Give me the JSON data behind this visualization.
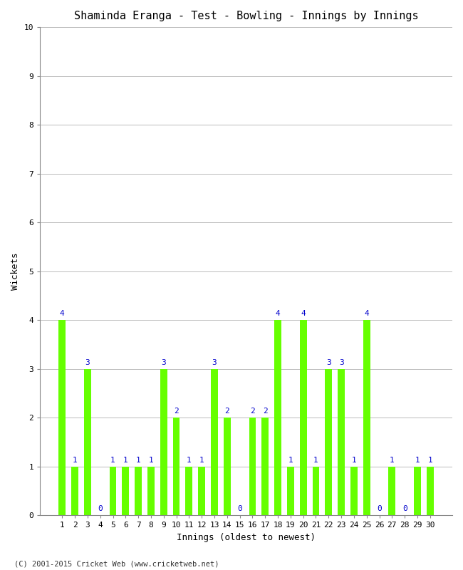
{
  "title": "Shaminda Eranga - Test - Bowling - Innings by Innings",
  "xlabel": "Innings (oldest to newest)",
  "ylabel": "Wickets",
  "bar_color": "#66FF00",
  "label_color": "#0000CC",
  "background_color": "#ffffff",
  "grid_color": "#bbbbbb",
  "footer": "(C) 2001-2015 Cricket Web (www.cricketweb.net)",
  "ylim": [
    0,
    10
  ],
  "yticks": [
    0,
    1,
    2,
    3,
    4,
    5,
    6,
    7,
    8,
    9,
    10
  ],
  "innings": [
    1,
    2,
    3,
    4,
    5,
    6,
    7,
    8,
    9,
    10,
    11,
    12,
    13,
    14,
    15,
    16,
    17,
    18,
    19,
    20,
    21,
    22,
    23,
    24,
    25,
    26,
    27,
    28,
    29,
    30
  ],
  "wickets": [
    4,
    1,
    3,
    0,
    1,
    1,
    1,
    1,
    3,
    2,
    1,
    1,
    3,
    2,
    0,
    2,
    2,
    4,
    1,
    4,
    1,
    3,
    3,
    1,
    4,
    0,
    1,
    0,
    1,
    1
  ],
  "bar_width": 0.55,
  "label_fontsize": 8,
  "tick_fontsize": 8,
  "title_fontsize": 11,
  "axis_label_fontsize": 9
}
